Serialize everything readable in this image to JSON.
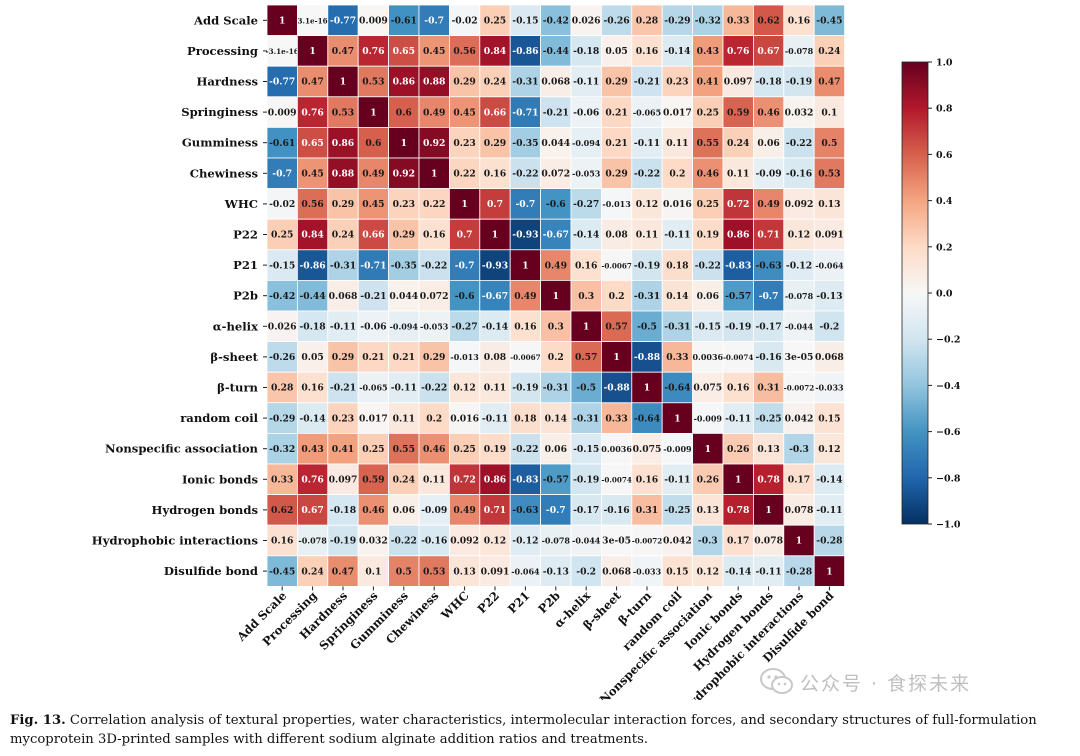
{
  "chart_data": {
    "type": "heatmap",
    "title": "",
    "variables": [
      "Add Scale",
      "Processing",
      "Hardness",
      "Springiness",
      "Gumminess",
      "Chewiness",
      "WHC",
      "P22",
      "P21",
      "P2b",
      "α-helix",
      "β-sheet",
      "β-turn",
      "random coil",
      "Nonspecific association",
      "Ionic bonds",
      "Hydrogen bonds",
      "Hydrophobic interactions",
      "Disulfide bond"
    ],
    "labels": [
      [
        "1",
        "3.1e-16",
        "-0.77",
        "0.009",
        "-0.61",
        "-0.7",
        "-0.02",
        "0.25",
        "-0.15",
        "-0.42",
        "0.026",
        "-0.26",
        "0.28",
        "-0.29",
        "-0.32",
        "0.33",
        "0.62",
        "0.16",
        "-0.45"
      ],
      [
        "-3.1e-16",
        "1",
        "0.47",
        "0.76",
        "0.65",
        "0.45",
        "0.56",
        "0.84",
        "-0.86",
        "-0.44",
        "-0.18",
        "0.05",
        "0.16",
        "-0.14",
        "0.43",
        "0.76",
        "0.67",
        "-0.078",
        "0.24"
      ],
      [
        "-0.77",
        "0.47",
        "1",
        "0.53",
        "0.86",
        "0.88",
        "0.29",
        "0.24",
        "-0.31",
        "0.068",
        "-0.11",
        "0.29",
        "-0.21",
        "0.23",
        "0.41",
        "0.097",
        "-0.18",
        "-0.19",
        "0.47"
      ],
      [
        "0.009",
        "0.76",
        "0.53",
        "1",
        "0.6",
        "0.49",
        "0.45",
        "0.66",
        "-0.71",
        "-0.21",
        "-0.06",
        "0.21",
        "-0.065",
        "0.017",
        "0.25",
        "0.59",
        "0.46",
        "0.032",
        "0.1"
      ],
      [
        "-0.61",
        "0.65",
        "0.86",
        "0.6",
        "1",
        "0.92",
        "0.23",
        "0.29",
        "-0.35",
        "0.044",
        "-0.094",
        "0.21",
        "-0.11",
        "0.11",
        "0.55",
        "0.24",
        "0.06",
        "-0.22",
        "0.5"
      ],
      [
        "-0.7",
        "0.45",
        "0.88",
        "0.49",
        "0.92",
        "1",
        "0.22",
        "0.16",
        "-0.22",
        "0.072",
        "-0.053",
        "0.29",
        "-0.22",
        "0.2",
        "0.46",
        "0.11",
        "-0.09",
        "-0.16",
        "0.53"
      ],
      [
        "-0.02",
        "0.56",
        "0.29",
        "0.45",
        "0.23",
        "0.22",
        "1",
        "0.7",
        "-0.7",
        "-0.6",
        "-0.27",
        "-0.013",
        "0.12",
        "0.016",
        "0.25",
        "0.72",
        "0.49",
        "0.092",
        "0.13"
      ],
      [
        "0.25",
        "0.84",
        "0.24",
        "0.66",
        "0.29",
        "0.16",
        "0.7",
        "1",
        "-0.93",
        "-0.67",
        "-0.14",
        "0.08",
        "0.11",
        "-0.11",
        "0.19",
        "0.86",
        "0.71",
        "0.12",
        "0.091"
      ],
      [
        "-0.15",
        "-0.86",
        "-0.31",
        "-0.71",
        "-0.35",
        "-0.22",
        "-0.7",
        "-0.93",
        "1",
        "0.49",
        "0.16",
        "-0.0067",
        "-0.19",
        "0.18",
        "-0.22",
        "-0.83",
        "-0.63",
        "-0.12",
        "-0.064"
      ],
      [
        "-0.42",
        "-0.44",
        "0.068",
        "-0.21",
        "0.044",
        "0.072",
        "-0.6",
        "-0.67",
        "0.49",
        "1",
        "0.3",
        "0.2",
        "-0.31",
        "0.14",
        "0.06",
        "-0.57",
        "-0.7",
        "-0.078",
        "-0.13"
      ],
      [
        "0.026",
        "-0.18",
        "-0.11",
        "-0.06",
        "-0.094",
        "-0.053",
        "-0.27",
        "-0.14",
        "0.16",
        "0.3",
        "1",
        "0.57",
        "-0.5",
        "-0.31",
        "-0.15",
        "-0.19",
        "-0.17",
        "-0.044",
        "-0.2"
      ],
      [
        "-0.26",
        "0.05",
        "0.29",
        "0.21",
        "0.21",
        "0.29",
        "-0.013",
        "0.08",
        "-0.0067",
        "0.2",
        "0.57",
        "1",
        "-0.88",
        "0.33",
        "0.0036",
        "-0.0074",
        "-0.16",
        "3e-05",
        "0.068"
      ],
      [
        "0.28",
        "0.16",
        "-0.21",
        "-0.065",
        "-0.11",
        "-0.22",
        "0.12",
        "0.11",
        "-0.19",
        "-0.31",
        "-0.5",
        "-0.88",
        "1",
        "-0.64",
        "0.075",
        "0.16",
        "0.31",
        "-0.0072",
        "-0.033"
      ],
      [
        "-0.29",
        "-0.14",
        "0.23",
        "0.017",
        "0.11",
        "0.2",
        "0.016",
        "-0.11",
        "0.18",
        "0.14",
        "-0.31",
        "0.33",
        "-0.64",
        "1",
        "-0.009",
        "-0.11",
        "-0.25",
        "0.042",
        "0.15"
      ],
      [
        "-0.32",
        "0.43",
        "0.41",
        "0.25",
        "0.55",
        "0.46",
        "0.25",
        "0.19",
        "-0.22",
        "0.06",
        "-0.15",
        "0.0036",
        "0.075",
        "-0.009",
        "1",
        "0.26",
        "0.13",
        "-0.3",
        "0.12"
      ],
      [
        "0.33",
        "0.76",
        "0.097",
        "0.59",
        "0.24",
        "0.11",
        "0.72",
        "0.86",
        "-0.83",
        "-0.57",
        "-0.19",
        "-0.0074",
        "0.16",
        "-0.11",
        "0.26",
        "1",
        "0.78",
        "0.17",
        "-0.14"
      ],
      [
        "0.62",
        "0.67",
        "-0.18",
        "0.46",
        "0.06",
        "-0.09",
        "0.49",
        "0.71",
        "-0.63",
        "-0.7",
        "-0.17",
        "-0.16",
        "0.31",
        "-0.25",
        "0.13",
        "0.78",
        "1",
        "0.078",
        "-0.11"
      ],
      [
        "0.16",
        "-0.078",
        "-0.19",
        "0.032",
        "-0.22",
        "-0.16",
        "0.092",
        "0.12",
        "-0.12",
        "-0.078",
        "-0.044",
        "3e-05",
        "-0.0072",
        "0.042",
        "-0.3",
        "0.17",
        "0.078",
        "1",
        "-0.28"
      ],
      [
        "-0.45",
        "0.24",
        "0.47",
        "0.1",
        "0.5",
        "0.53",
        "0.13",
        "0.091",
        "-0.064",
        "-0.13",
        "-0.2",
        "0.068",
        "-0.033",
        "0.15",
        "0.12",
        "-0.14",
        "-0.11",
        "-0.28",
        "1"
      ]
    ],
    "colorbar": {
      "range": [
        -1.0,
        1.0
      ],
      "ticks": [
        "1.0",
        "0.8",
        "0.6",
        "0.4",
        "0.2",
        "0.0",
        "−0.2",
        "−0.4",
        "−0.6",
        "−0.8",
        "−1.0"
      ],
      "tick_values": [
        1.0,
        0.8,
        0.6,
        0.4,
        0.2,
        0.0,
        -0.2,
        -0.4,
        -0.6,
        -0.8,
        -1.0
      ],
      "cmap": [
        "#053061",
        "#2166ac",
        "#4393c3",
        "#92c5de",
        "#d1e5f0",
        "#f7f7f7",
        "#fddbc7",
        "#f4a582",
        "#d6604d",
        "#b2182b",
        "#67001f"
      ]
    }
  },
  "caption": {
    "label": "Fig. 13.",
    "text": "Correlation analysis of textural properties, water characteristics, intermolecular interaction forces, and secondary structures of full-formulation mycoprotein 3D-printed samples with different sodium alginate addition ratios and treatments."
  },
  "watermark": {
    "text": "公众号 · 食探未来"
  }
}
